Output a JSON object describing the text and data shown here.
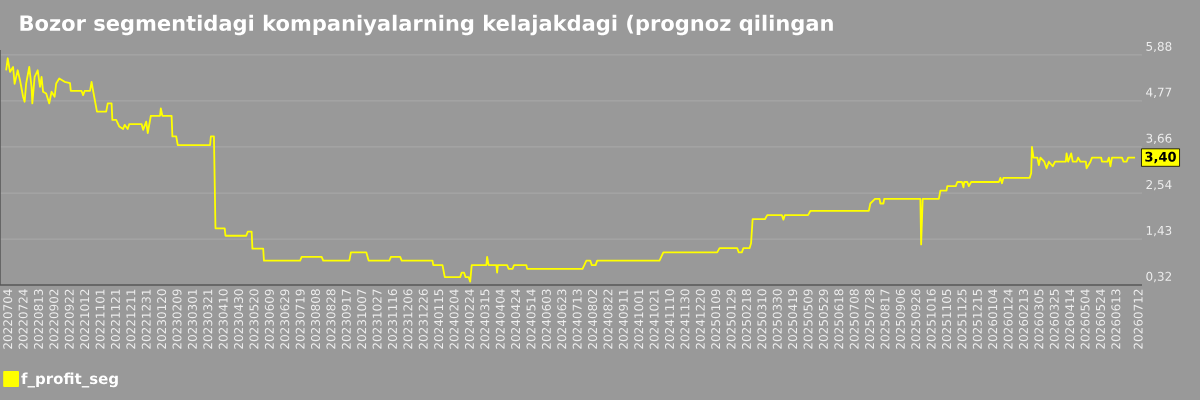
{
  "chart_data": {
    "type": "line",
    "title": "Bozor segmentidagi kompaniyalarning kelajakdagi (prognoz qilingan",
    "x": [
      "2022-07-02",
      "2022-07-04",
      "2022-07-07",
      "2022-07-11",
      "2022-07-13",
      "2022-07-17",
      "2022-07-20",
      "2022-07-24",
      "2022-07-26",
      "2022-07-28",
      "2022-08-01",
      "2022-08-04",
      "2022-08-05",
      "2022-08-08",
      "2022-08-12",
      "2022-08-15",
      "2022-08-17",
      "2022-08-19",
      "2022-08-23",
      "2022-08-27",
      "2022-08-30",
      "2022-09-03",
      "2022-09-05",
      "2022-09-09",
      "2022-09-16",
      "2022-09-23",
      "2022-09-24",
      "2022-10-08",
      "2022-10-10",
      "2022-10-12",
      "2022-10-19",
      "2022-10-21",
      "2022-10-23",
      "2022-10-28",
      "2022-11-09",
      "2022-11-11",
      "2022-11-16",
      "2022-11-17",
      "2022-11-22",
      "2022-11-26",
      "2022-12-01",
      "2022-12-03",
      "2022-12-07",
      "2022-12-09",
      "2022-12-25",
      "2022-12-27",
      "2022-12-31",
      "2023-01-02",
      "2023-01-06",
      "2023-01-18",
      "2023-01-19",
      "2023-01-21",
      "2023-02-02",
      "2023-02-03",
      "2023-02-08",
      "2023-02-10",
      "2023-03-24",
      "2023-03-25",
      "2023-03-29",
      "2023-03-31",
      "2023-04-12",
      "2023-04-13",
      "2023-05-10",
      "2023-05-12",
      "2023-05-17",
      "2023-05-18",
      "2023-06-01",
      "2023-06-02",
      "2023-07-19",
      "2023-07-21",
      "2023-08-16",
      "2023-08-18",
      "2023-09-21",
      "2023-09-23",
      "2023-10-13",
      "2023-10-16",
      "2023-11-12",
      "2023-11-14",
      "2023-11-26",
      "2023-11-28",
      "2024-01-07",
      "2024-01-08",
      "2024-01-20",
      "2024-01-23",
      "2024-02-12",
      "2024-02-14",
      "2024-02-17",
      "2024-02-19",
      "2024-02-23",
      "2024-02-25",
      "2024-02-27",
      "2024-03-17",
      "2024-03-18",
      "2024-03-20",
      "2024-03-30",
      "2024-03-31",
      "2024-04-01",
      "2024-04-13",
      "2024-04-15",
      "2024-04-20",
      "2024-04-22",
      "2024-05-08",
      "2024-05-09",
      "2024-07-20",
      "2024-07-25",
      "2024-07-30",
      "2024-08-01",
      "2024-08-06",
      "2024-08-08",
      "2024-10-28",
      "2024-11-02",
      "2025-01-11",
      "2025-01-14",
      "2025-02-06",
      "2025-02-08",
      "2025-02-12",
      "2025-02-14",
      "2025-02-22",
      "2025-02-24",
      "2025-02-26",
      "2025-03-14",
      "2025-03-17",
      "2025-04-05",
      "2025-04-07",
      "2025-04-09",
      "2025-04-29",
      "2025-05-09",
      "2025-05-12",
      "2025-07-27",
      "2025-07-29",
      "2025-08-04",
      "2025-08-10",
      "2025-08-11",
      "2025-08-15",
      "2025-08-16",
      "2025-10-02",
      "2025-10-03",
      "2025-10-05",
      "2025-10-26",
      "2025-10-28",
      "2025-11-05",
      "2025-11-06",
      "2025-11-17",
      "2025-11-19",
      "2025-11-25",
      "2025-11-27",
      "2025-11-28",
      "2025-12-02",
      "2025-12-04",
      "2025-12-07",
      "2026-01-12",
      "2026-01-14",
      "2026-01-16",
      "2026-01-18",
      "2026-02-21",
      "2026-02-23",
      "2026-02-24",
      "2026-02-26",
      "2026-03-03",
      "2026-03-05",
      "2026-03-07",
      "2026-03-12",
      "2026-03-15",
      "2026-03-18",
      "2026-03-23",
      "2026-03-26",
      "2026-04-09",
      "2026-04-10",
      "2026-04-12",
      "2026-04-16",
      "2026-04-18",
      "2026-04-23",
      "2026-04-25",
      "2026-04-28",
      "2026-05-05",
      "2026-05-06",
      "2026-05-11",
      "2026-05-13",
      "2026-05-25",
      "2026-05-26",
      "2026-06-02",
      "2026-06-04",
      "2026-06-06",
      "2026-06-08",
      "2026-06-21",
      "2026-06-23",
      "2026-06-27",
      "2026-06-29",
      "2026-07-08"
    ],
    "series": [
      {
        "name": "f_profit_seg",
        "color": "#ffff00",
        "values": [
          5.51,
          5.8,
          5.47,
          5.59,
          5.18,
          5.51,
          5.27,
          4.87,
          4.75,
          5.19,
          5.59,
          5.11,
          4.71,
          5.35,
          5.51,
          5.11,
          5.35,
          4.99,
          4.95,
          4.71,
          4.99,
          4.87,
          5.19,
          5.31,
          5.23,
          5.2,
          5.01,
          5.01,
          4.91,
          5.01,
          5.01,
          5.23,
          5.01,
          4.51,
          4.51,
          4.71,
          4.71,
          4.31,
          4.31,
          4.15,
          4.09,
          4.19,
          4.09,
          4.21,
          4.21,
          4.07,
          4.27,
          3.99,
          4.41,
          4.41,
          4.59,
          4.41,
          4.41,
          3.91,
          3.91,
          3.7,
          3.7,
          3.91,
          3.91,
          1.69,
          1.69,
          1.51,
          1.51,
          1.61,
          1.61,
          1.2,
          1.2,
          0.91,
          0.91,
          1.0,
          1.0,
          0.91,
          0.91,
          1.11,
          1.11,
          0.91,
          0.91,
          1.0,
          1.0,
          0.91,
          0.91,
          0.8,
          0.8,
          0.51,
          0.51,
          0.62,
          0.62,
          0.51,
          0.51,
          0.4,
          0.8,
          0.8,
          1.0,
          0.8,
          0.8,
          0.62,
          0.8,
          0.8,
          0.71,
          0.71,
          0.8,
          0.8,
          0.71,
          0.71,
          0.91,
          0.91,
          0.8,
          0.8,
          0.91,
          0.91,
          1.11,
          1.11,
          1.21,
          1.21,
          1.11,
          1.11,
          1.21,
          1.21,
          1.33,
          1.91,
          1.91,
          2.01,
          2.01,
          1.9,
          2.01,
          2.01,
          2.01,
          2.11,
          2.11,
          2.29,
          2.4,
          2.4,
          2.29,
          2.29,
          2.4,
          2.4,
          1.3,
          2.4,
          2.4,
          2.6,
          2.6,
          2.71,
          2.71,
          2.81,
          2.81,
          2.68,
          2.81,
          2.81,
          2.71,
          2.81,
          2.81,
          2.91,
          2.78,
          2.91,
          2.91,
          3.02,
          3.66,
          3.4,
          3.4,
          3.22,
          3.4,
          3.3,
          3.14,
          3.3,
          3.19,
          3.3,
          3.3,
          3.5,
          3.3,
          3.5,
          3.3,
          3.3,
          3.4,
          3.3,
          3.3,
          3.14,
          3.3,
          3.4,
          3.4,
          3.3,
          3.3,
          3.4,
          3.19,
          3.4,
          3.4,
          3.3,
          3.3,
          3.4,
          3.4
        ]
      }
    ],
    "xlim": [
      "2022-06-24",
      "2026-07-17"
    ],
    "xticks": [
      {
        "value": "2022-07-04",
        "label": "20220704"
      },
      {
        "value": "2022-07-24",
        "label": "20220724"
      },
      {
        "value": "2022-08-13",
        "label": "20220813"
      },
      {
        "value": "2022-09-02",
        "label": "20220902"
      },
      {
        "value": "2022-09-22",
        "label": "20220922"
      },
      {
        "value": "2022-10-12",
        "label": "20221012"
      },
      {
        "value": "2022-11-01",
        "label": "20221101"
      },
      {
        "value": "2022-11-21",
        "label": "20221121"
      },
      {
        "value": "2022-12-11",
        "label": "20221211"
      },
      {
        "value": "2022-12-31",
        "label": "20221231"
      },
      {
        "value": "2023-01-20",
        "label": "20230120"
      },
      {
        "value": "2023-02-09",
        "label": "20230209"
      },
      {
        "value": "2023-03-01",
        "label": "20230301"
      },
      {
        "value": "2023-03-21",
        "label": "20230321"
      },
      {
        "value": "2023-04-10",
        "label": "20230410"
      },
      {
        "value": "2023-04-30",
        "label": "20230430"
      },
      {
        "value": "2023-05-20",
        "label": "20230520"
      },
      {
        "value": "2023-06-09",
        "label": "20230609"
      },
      {
        "value": "2023-06-29",
        "label": "20230629"
      },
      {
        "value": "2023-07-19",
        "label": "20230719"
      },
      {
        "value": "2023-08-08",
        "label": "20230808"
      },
      {
        "value": "2023-08-28",
        "label": "20230828"
      },
      {
        "value": "2023-09-17",
        "label": "20230917"
      },
      {
        "value": "2023-10-07",
        "label": "20231007"
      },
      {
        "value": "2023-10-27",
        "label": "20231027"
      },
      {
        "value": "2023-11-16",
        "label": "20231116"
      },
      {
        "value": "2023-12-06",
        "label": "20231206"
      },
      {
        "value": "2023-12-26",
        "label": "20231226"
      },
      {
        "value": "2024-01-15",
        "label": "20240115"
      },
      {
        "value": "2024-02-04",
        "label": "20240204"
      },
      {
        "value": "2024-02-24",
        "label": "20240224"
      },
      {
        "value": "2024-03-15",
        "label": "20240315"
      },
      {
        "value": "2024-04-04",
        "label": "20240404"
      },
      {
        "value": "2024-04-24",
        "label": "20240424"
      },
      {
        "value": "2024-05-14",
        "label": "20240514"
      },
      {
        "value": "2024-06-03",
        "label": "20240603"
      },
      {
        "value": "2024-06-23",
        "label": "20240623"
      },
      {
        "value": "2024-07-13",
        "label": "20240713"
      },
      {
        "value": "2024-08-02",
        "label": "20240802"
      },
      {
        "value": "2024-08-22",
        "label": "20240822"
      },
      {
        "value": "2024-09-11",
        "label": "20240911"
      },
      {
        "value": "2024-10-01",
        "label": "20241001"
      },
      {
        "value": "2024-10-21",
        "label": "20241021"
      },
      {
        "value": "2024-11-10",
        "label": "20241110"
      },
      {
        "value": "2024-11-30",
        "label": "20241130"
      },
      {
        "value": "2024-12-20",
        "label": "20241220"
      },
      {
        "value": "2025-01-09",
        "label": "20250109"
      },
      {
        "value": "2025-01-29",
        "label": "20250129"
      },
      {
        "value": "2025-02-18",
        "label": "20250218"
      },
      {
        "value": "2025-03-10",
        "label": "20250310"
      },
      {
        "value": "2025-03-30",
        "label": "20250330"
      },
      {
        "value": "2025-04-19",
        "label": "20250419"
      },
      {
        "value": "2025-05-09",
        "label": "20250509"
      },
      {
        "value": "2025-05-29",
        "label": "20250529"
      },
      {
        "value": "2025-06-18",
        "label": "20250618"
      },
      {
        "value": "2025-07-08",
        "label": "20250708"
      },
      {
        "value": "2025-07-28",
        "label": "20250728"
      },
      {
        "value": "2025-08-17",
        "label": "20250817"
      },
      {
        "value": "2025-09-06",
        "label": "20250906"
      },
      {
        "value": "2025-09-26",
        "label": "20250926"
      },
      {
        "value": "2025-10-16",
        "label": "20251016"
      },
      {
        "value": "2025-11-05",
        "label": "20251105"
      },
      {
        "value": "2025-11-25",
        "label": "20251125"
      },
      {
        "value": "2025-12-15",
        "label": "20251215"
      },
      {
        "value": "2026-01-04",
        "label": "20260104"
      },
      {
        "value": "2026-01-24",
        "label": "20260124"
      },
      {
        "value": "2026-02-13",
        "label": "20260213"
      },
      {
        "value": "2026-03-05",
        "label": "20260305"
      },
      {
        "value": "2026-03-25",
        "label": "20260325"
      },
      {
        "value": "2026-04-14",
        "label": "20260414"
      },
      {
        "value": "2026-05-04",
        "label": "20260504"
      },
      {
        "value": "2026-05-24",
        "label": "20260524"
      },
      {
        "value": "2026-06-13",
        "label": "20260613"
      },
      {
        "value": "2026-07-12",
        "label": "20260712"
      }
    ],
    "ylim": [
      0.32,
      6.0
    ],
    "yticks": [
      {
        "value": 0.32,
        "label": "0,32"
      },
      {
        "value": 1.43,
        "label": "1,43"
      },
      {
        "value": 2.54,
        "label": "2,54"
      },
      {
        "value": 3.66,
        "label": "3,66"
      },
      {
        "value": 4.77,
        "label": "4,77"
      },
      {
        "value": 5.88,
        "label": "5,88"
      }
    ],
    "annotations": [
      {
        "text": "3,40",
        "x": "2026-07-08",
        "y": 3.4
      }
    ],
    "grid": "y",
    "legend": "bottom left"
  }
}
